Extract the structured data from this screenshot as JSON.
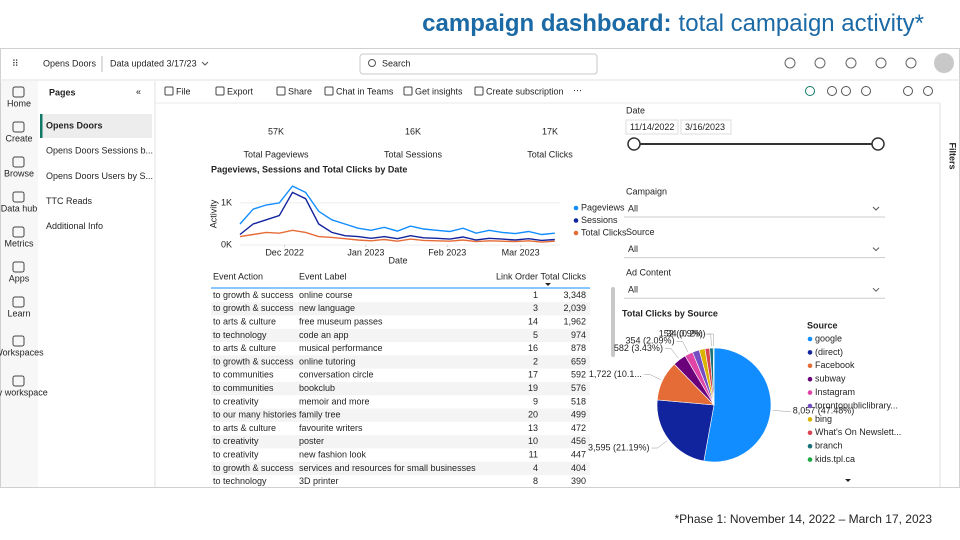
{
  "header": {
    "title_bold": "campaign dashboard:",
    "title_rest": "total campaign activity*",
    "footnote": "*Phase 1: November 14, 2022 – March 17, 2023"
  },
  "topbar": {
    "workspace": "Opens Doors",
    "updated": "Data updated 3/17/23",
    "search": "Search"
  },
  "nav": [
    "Home",
    "Create",
    "Browse",
    "Data hub",
    "Metrics",
    "Apps",
    "Learn",
    "Workspaces",
    "My workspace"
  ],
  "pages": {
    "title": "Pages",
    "items": [
      "Opens Doors",
      "Opens Doors Sessions b...",
      "Opens Doors Users by S...",
      "TTC Reads",
      "Additional Info"
    ]
  },
  "toolbar": [
    "File",
    "Export",
    "Share",
    "Chat in Teams",
    "Get insights",
    "Create subscription"
  ],
  "kpis": [
    {
      "value": "57K",
      "label": "Total Pageviews"
    },
    {
      "value": "16K",
      "label": "Total Sessions"
    },
    {
      "value": "17K",
      "label": "Total Clicks"
    }
  ],
  "line_chart": {
    "type": "line",
    "title": "Pageviews, Sessions and Total Clicks by Date",
    "x_label": "Date",
    "y_label": "Activity",
    "x": [
      0,
      5,
      10,
      15,
      20,
      25,
      30,
      35,
      40,
      45,
      50,
      55,
      60,
      65,
      70,
      75,
      80,
      85,
      90,
      95,
      100,
      105,
      110,
      115,
      120
    ],
    "xlim": [
      0,
      122
    ],
    "xticks": [
      {
        "value": 17,
        "label": "Dec 2022"
      },
      {
        "value": 48,
        "label": "Jan 2023"
      },
      {
        "value": 79,
        "label": "Feb 2023"
      },
      {
        "value": 107,
        "label": "Mar 2023"
      }
    ],
    "ylim": [
      0,
      1450
    ],
    "yticks": [
      {
        "value": 0,
        "label": "0K"
      },
      {
        "value": 1000,
        "label": "1K"
      }
    ],
    "series": [
      {
        "name": "Pageviews",
        "color": "#118dff",
        "values": [
          500,
          850,
          950,
          1000,
          1400,
          1250,
          800,
          600,
          500,
          400,
          350,
          420,
          330,
          450,
          380,
          350,
          320,
          400,
          280,
          350,
          300,
          270,
          320,
          250,
          280
        ]
      },
      {
        "name": "Sessions",
        "color": "#12239e",
        "values": [
          250,
          500,
          600,
          700,
          1250,
          1100,
          500,
          300,
          220,
          200,
          160,
          200,
          150,
          220,
          170,
          160,
          140,
          190,
          120,
          160,
          140,
          120,
          150,
          110,
          130
        ]
      },
      {
        "name": "Total Clicks",
        "color": "#e66c37",
        "values": [
          200,
          250,
          300,
          280,
          350,
          300,
          200,
          180,
          150,
          120,
          100,
          130,
          90,
          140,
          110,
          100,
          90,
          120,
          80,
          100,
          90,
          80,
          100,
          70,
          90
        ]
      }
    ]
  },
  "table": {
    "columns": [
      "Event Action",
      "Event Label",
      "Link Order",
      "Total Clicks"
    ],
    "rows": [
      [
        "to growth & success",
        "online course",
        "1",
        "3,348"
      ],
      [
        "to growth & success",
        "new language",
        "3",
        "2,039"
      ],
      [
        "to arts & culture",
        "free museum passes",
        "14",
        "1,962"
      ],
      [
        "to technology",
        "code an app",
        "5",
        "974"
      ],
      [
        "to arts & culture",
        "musical performance",
        "16",
        "878"
      ],
      [
        "to growth & success",
        "online tutoring",
        "2",
        "659"
      ],
      [
        "to communities",
        "conversation circle",
        "17",
        "592"
      ],
      [
        "to communities",
        "bookclub",
        "19",
        "576"
      ],
      [
        "to creativity",
        "memoir and more",
        "9",
        "518"
      ],
      [
        "to our many histories",
        "family tree",
        "20",
        "499"
      ],
      [
        "to arts & culture",
        "favourite writers",
        "13",
        "472"
      ],
      [
        "to creativity",
        "poster",
        "10",
        "456"
      ],
      [
        "to creativity",
        "new fashion look",
        "11",
        "447"
      ],
      [
        "to growth & success",
        "services and resources for small businesses",
        "4",
        "404"
      ],
      [
        "to technology",
        "3D printer",
        "8",
        "390"
      ]
    ]
  },
  "slicers": {
    "date": {
      "label": "Date",
      "start": "11/14/2022",
      "end": "3/16/2023"
    },
    "dropdowns": [
      {
        "label": "Campaign",
        "value": "All"
      },
      {
        "label": "Source",
        "value": "All"
      },
      {
        "label": "Ad Content",
        "value": "All"
      }
    ]
  },
  "pie_chart": {
    "type": "pie",
    "title": "Total Clicks by Source",
    "legend_title": "Source",
    "categories": [
      "google",
      "(direct)",
      "Facebook",
      "subway",
      "Instagram",
      "torontopubliclibrary...",
      "bing",
      "What's On Newslett...",
      "branch",
      "kids.tpl.ca"
    ],
    "values": [
      8057,
      3595,
      1722,
      582,
      354,
      300,
      250,
      200,
      152,
      34
    ],
    "value_labels": [
      "8,057 (47.48%)",
      "3,595 (21.19%)",
      "1,722 (10.1...",
      "582 (3.43%)",
      "354 (2.09%)",
      null,
      null,
      null,
      "152 (0.9%)",
      "34 (0.2%)"
    ],
    "colors": [
      "#118dff",
      "#12239e",
      "#e66c37",
      "#6b007b",
      "#e044a7",
      "#744ec2",
      "#d9b300",
      "#d64550",
      "#197278",
      "#1aab40"
    ]
  },
  "filters": "Filters"
}
